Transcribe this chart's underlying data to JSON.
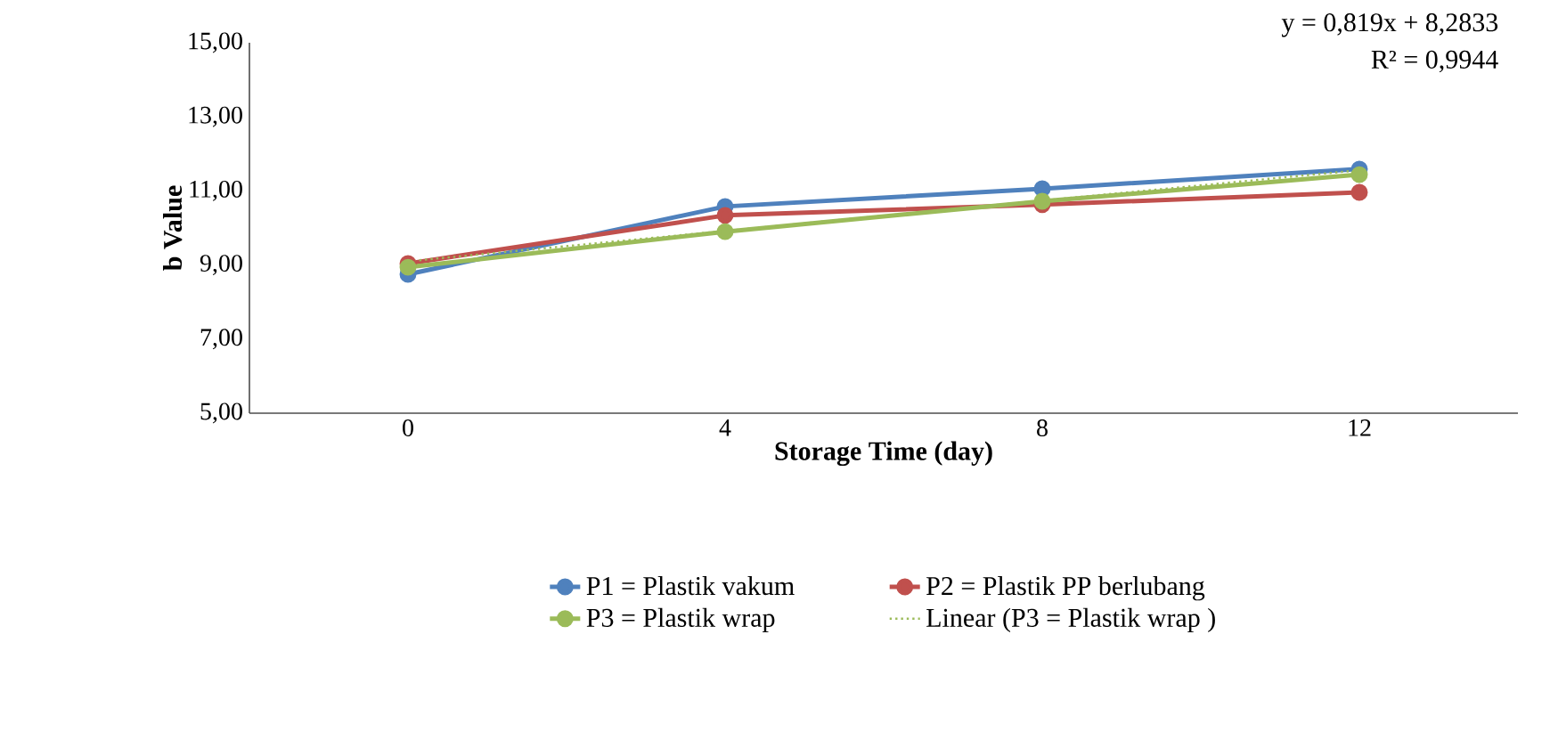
{
  "chart_data": {
    "type": "line",
    "xlabel": "Storage Time (day)",
    "ylabel": "b Value",
    "categories": [
      "0",
      "4",
      "8",
      "12"
    ],
    "series": [
      {
        "name": "P1 = Plastik vakum",
        "color": "#4f81bd",
        "values": [
          8.75,
          10.58,
          11.06,
          11.59
        ]
      },
      {
        "name": "P2 = Plastik PP berlubang",
        "color": "#c0504d",
        "values": [
          9.04,
          10.34,
          10.63,
          10.96
        ]
      },
      {
        "name": "P3 = Plastik wrap",
        "color": "#9bbb59",
        "values": [
          8.94,
          9.9,
          10.72,
          11.44
        ]
      },
      {
        "name": "Linear (P3 = Plastik wrap )",
        "color": "#9bbb59",
        "values": [
          9.1,
          9.92,
          10.74,
          11.56
        ],
        "line_style": "dotted",
        "marker": "none"
      }
    ],
    "ylim": [
      5,
      15
    ],
    "yticks": [
      {
        "value": 5,
        "label": "5,00"
      },
      {
        "value": 7,
        "label": "7,00"
      },
      {
        "value": 9,
        "label": "9,00"
      },
      {
        "value": 11,
        "label": "11,00"
      },
      {
        "value": 13,
        "label": "13,00"
      },
      {
        "value": 15,
        "label": "15,00"
      }
    ],
    "annotations": [
      "y = 0,819x + 8,2833",
      "R² = 0,9944"
    ],
    "marker": "circle",
    "line_style": "solid",
    "legend": "bottom",
    "grid": false
  }
}
